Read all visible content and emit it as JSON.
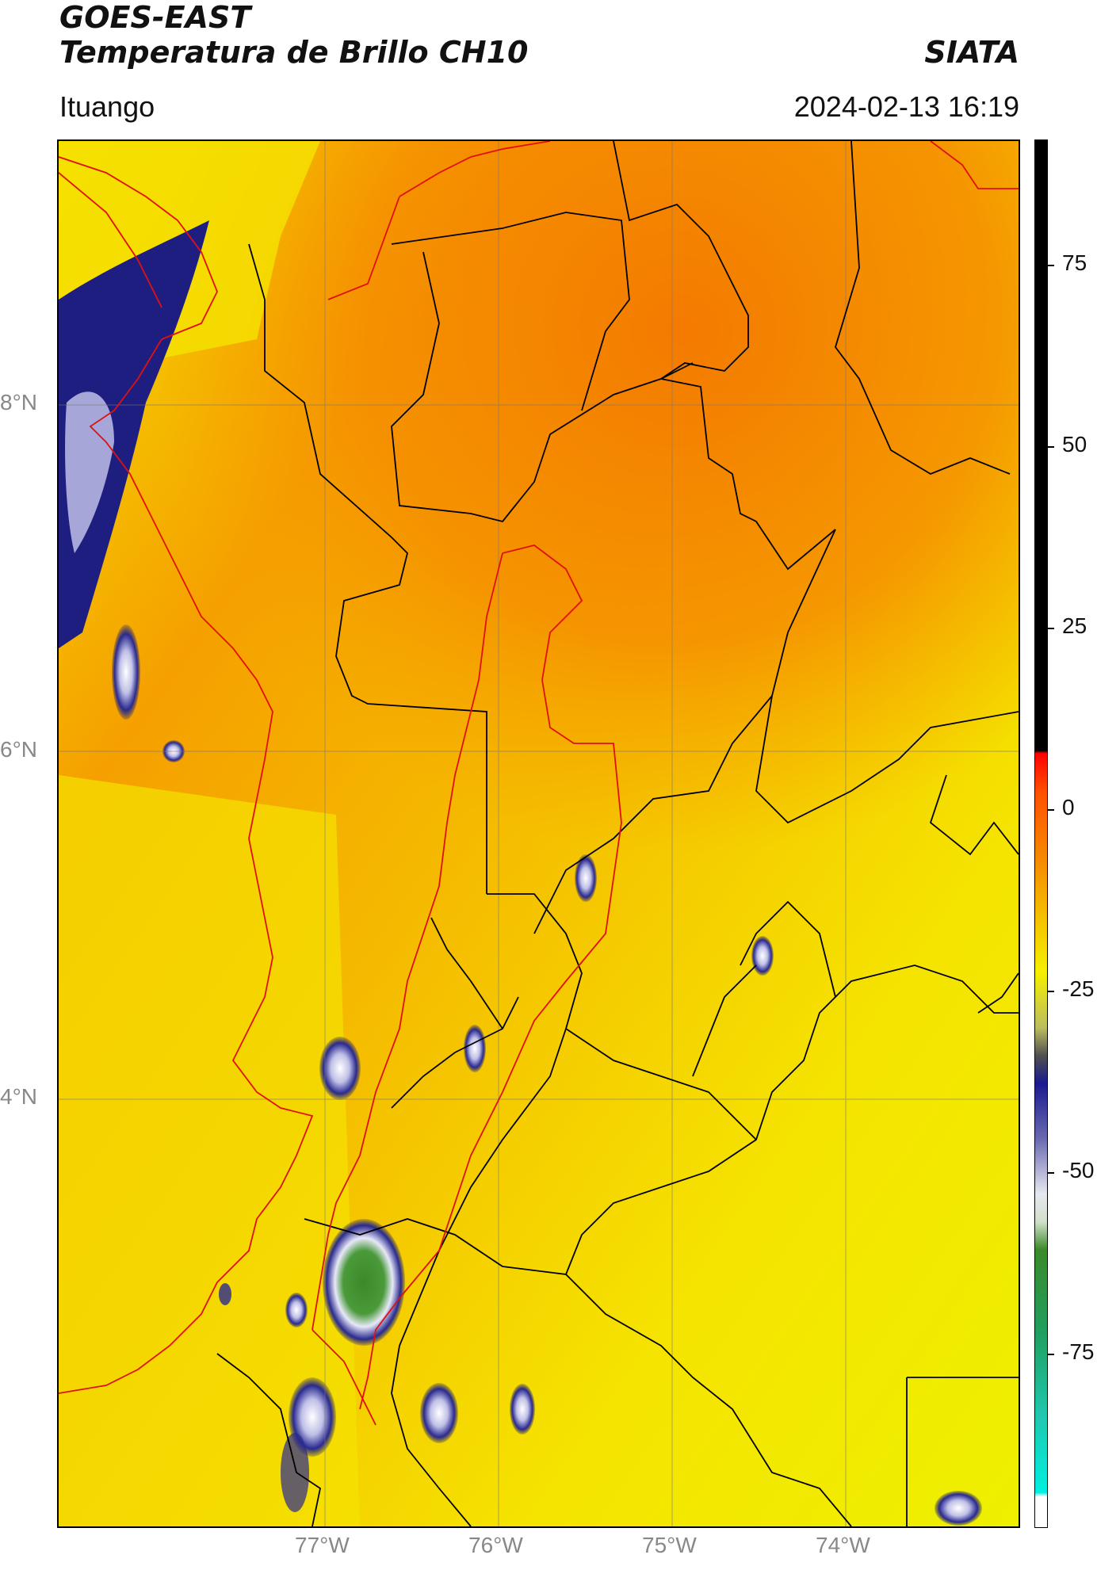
{
  "header": {
    "title_line1": "GOES-EAST",
    "title_line2": "Temperatura de Brillo CH10",
    "brand": "SIATA",
    "subtitle": "Ituango",
    "timestamp": "2024-02-13 16:19"
  },
  "map": {
    "lat_labels": [
      "8°N",
      "6°N",
      "4°N"
    ],
    "lon_labels": [
      "77°W",
      "76°W",
      "75°W",
      "74°W"
    ],
    "colors": {
      "warm": "#f47c00",
      "mid": "#f5a800",
      "cool": "#f5f000",
      "cloud_dark": "#1a1a7a",
      "cloud_light": "#d8d8f0",
      "cloud_core": "#3a8a2a",
      "border_national": "#e01010",
      "border_admin": "#000000"
    }
  },
  "colorbar": {
    "labels": [
      "75",
      "50",
      "25",
      "0",
      "-25",
      "-50",
      "-75"
    ]
  }
}
